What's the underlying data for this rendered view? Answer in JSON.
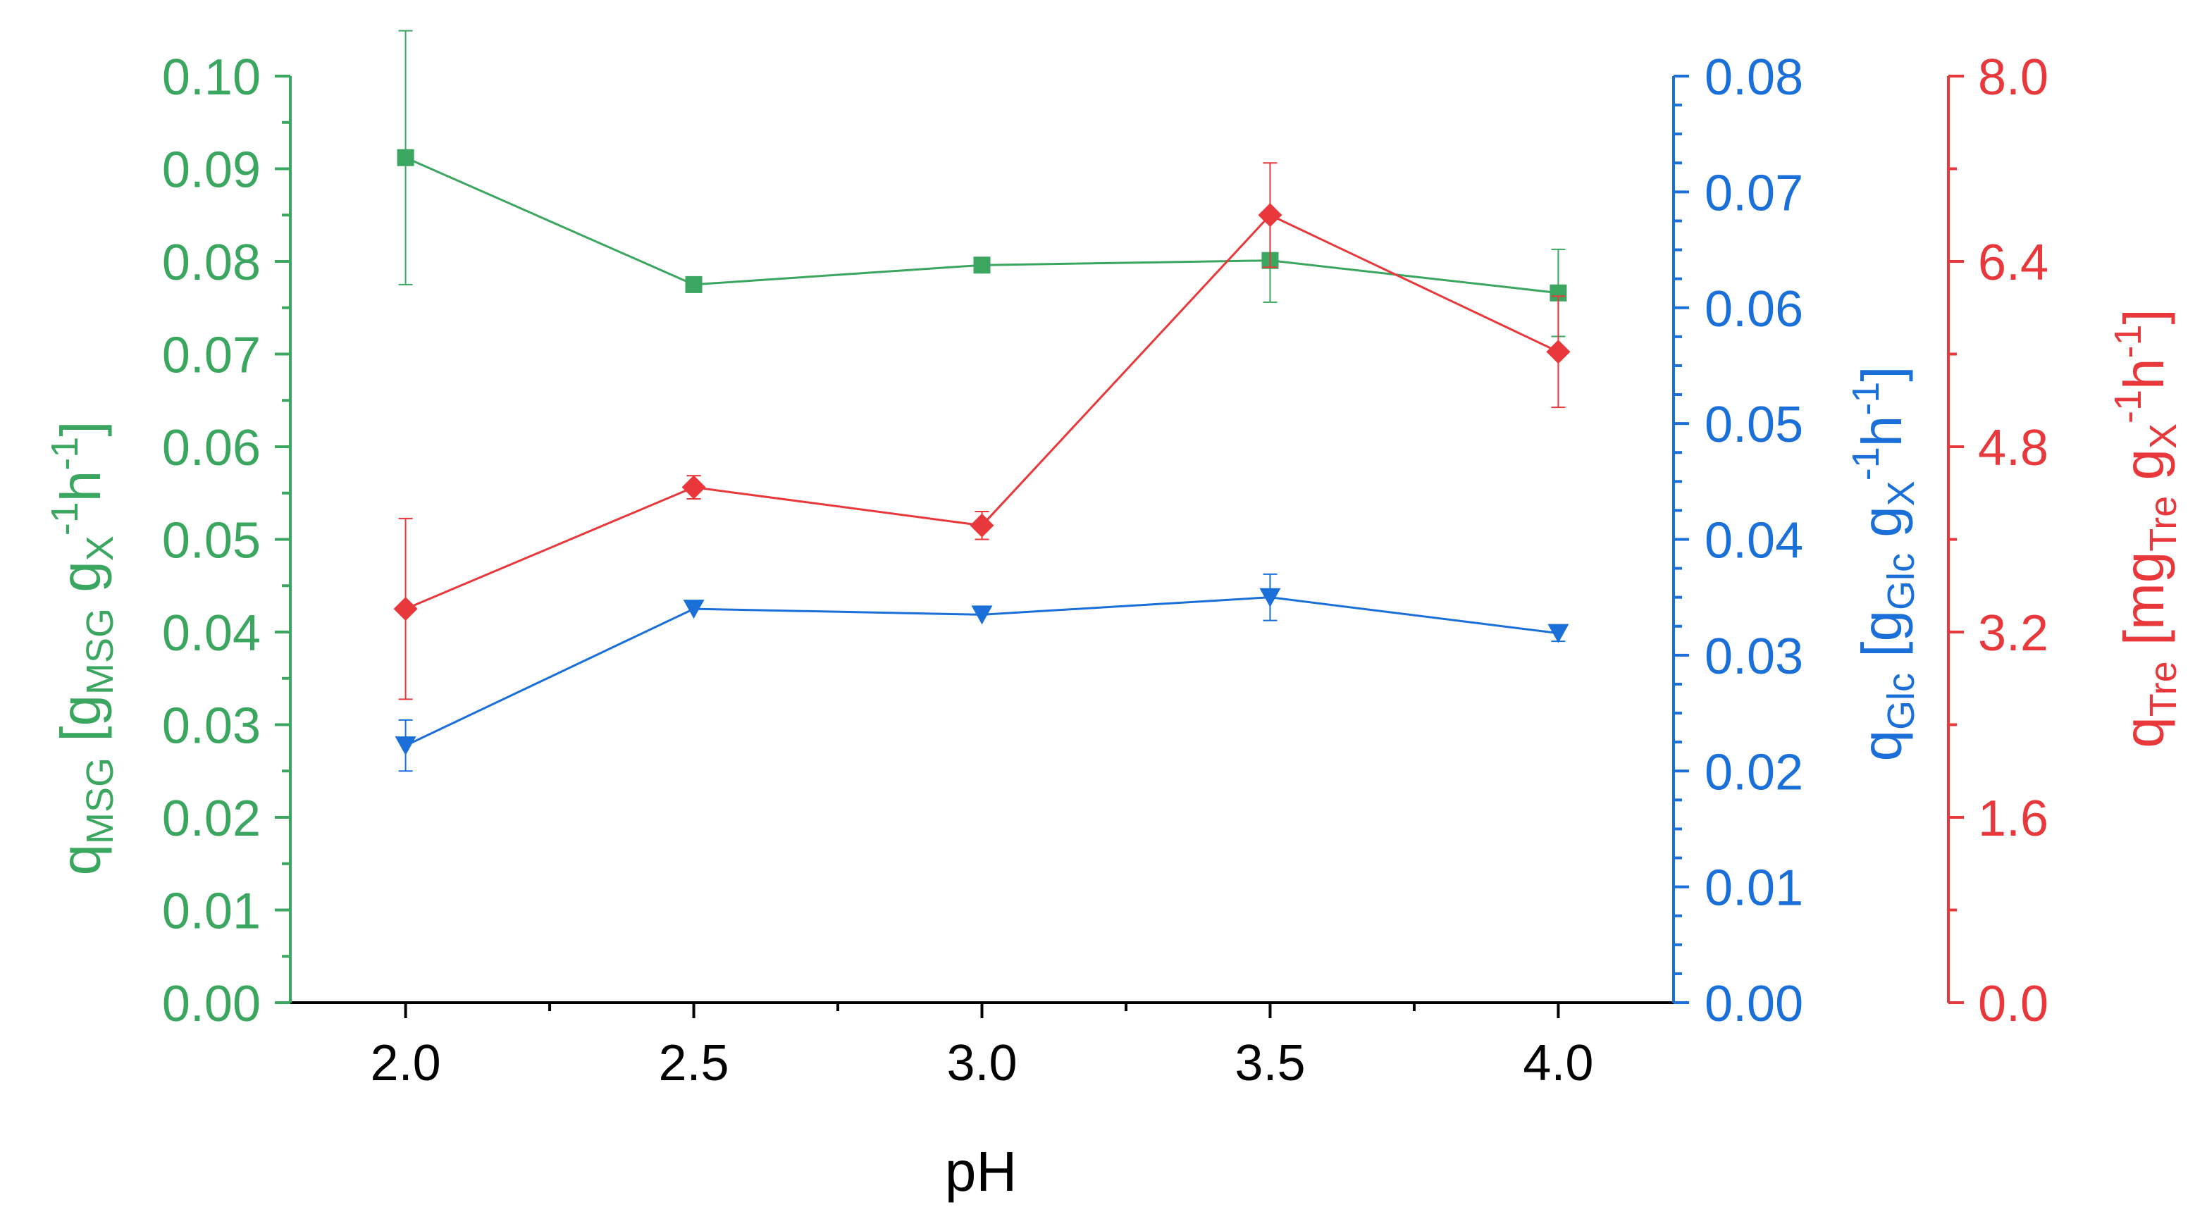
{
  "chart_data": {
    "type": "line",
    "x_axis": {
      "label": "pH",
      "range": [
        1.8,
        4.2
      ],
      "ticks": [
        2.0,
        2.5,
        3.0,
        3.5,
        4.0
      ],
      "tick_labels": [
        "2.0",
        "2.5",
        "3.0",
        "3.5",
        "4.0"
      ],
      "minor_ticks": [
        2.25,
        2.75,
        3.25,
        3.75
      ]
    },
    "y_axes": {
      "msg": {
        "label_main": "q",
        "label_sub": "MSG",
        "label_open": " [g",
        "label_sub2": "MSG",
        "label_mid": " g",
        "label_sub3": "X",
        "label_sup": "-1",
        "label_h": "h",
        "label_sup2": "-1",
        "label_close": "]",
        "range": [
          0.0,
          0.1
        ],
        "ticks": [
          0.0,
          0.01,
          0.02,
          0.03,
          0.04,
          0.05,
          0.06,
          0.07,
          0.08,
          0.09,
          0.1
        ],
        "tick_labels": [
          "0.00",
          "0.01",
          "0.02",
          "0.03",
          "0.04",
          "0.05",
          "0.06",
          "0.07",
          "0.08",
          "0.09",
          "0.10"
        ],
        "color": "#3aa65f"
      },
      "glc": {
        "label_main": "q",
        "label_sub": "Glc",
        "label_open": " [g",
        "label_sub2": "Glc",
        "label_mid": " g",
        "label_sub3": "X",
        "label_sup": "-1",
        "label_h": "h",
        "label_sup2": "-1",
        "label_close": "]",
        "range": [
          0.0,
          0.08
        ],
        "ticks": [
          0.0,
          0.01,
          0.02,
          0.03,
          0.04,
          0.05,
          0.06,
          0.07,
          0.08
        ],
        "tick_labels": [
          "0.00",
          "0.01",
          "0.02",
          "0.03",
          "0.04",
          "0.05",
          "0.06",
          "0.07",
          "0.08"
        ],
        "color": "#1a6fd8"
      },
      "tre": {
        "label_main": "q",
        "label_sub": "Tre",
        "label_open": " [mg",
        "label_sub2": "Tre",
        "label_mid": " g",
        "label_sub3": "X",
        "label_sup": "-1",
        "label_h": "h",
        "label_sup2": "-1",
        "label_close": "]",
        "range": [
          0.0,
          8.0
        ],
        "ticks": [
          0.0,
          1.6,
          3.2,
          4.8,
          6.4,
          8.0
        ],
        "tick_labels": [
          "0.0",
          "1.6",
          "3.2",
          "4.8",
          "6.4",
          "8.0"
        ],
        "color": "#e8383b"
      }
    },
    "series": [
      {
        "name": "qMSG",
        "axis": "msg",
        "marker": "square",
        "color": "#3aa65f",
        "x": [
          2.0,
          2.5,
          3.0,
          3.5,
          4.0
        ],
        "y": [
          0.0912,
          0.0775,
          0.0796,
          0.0801,
          0.0766
        ],
        "err": [
          0.0137,
          0,
          0,
          0.0045,
          0.0047
        ]
      },
      {
        "name": "qGlc",
        "axis": "glc",
        "marker": "triangle-down",
        "color": "#1a6fd8",
        "x": [
          2.0,
          2.5,
          3.0,
          3.5,
          4.0
        ],
        "y": [
          0.0222,
          0.034,
          0.0335,
          0.035,
          0.0319
        ],
        "err": [
          0.0022,
          0,
          0,
          0.002,
          0.0007
        ]
      },
      {
        "name": "qTre",
        "axis": "tre",
        "marker": "diamond",
        "color": "#e8383b",
        "x": [
          2.0,
          2.5,
          3.0,
          3.5,
          4.0
        ],
        "y": [
          3.4,
          4.45,
          4.12,
          6.8,
          5.62
        ],
        "err": [
          0.78,
          0.1,
          0.12,
          0.45,
          0.48
        ]
      }
    ]
  }
}
